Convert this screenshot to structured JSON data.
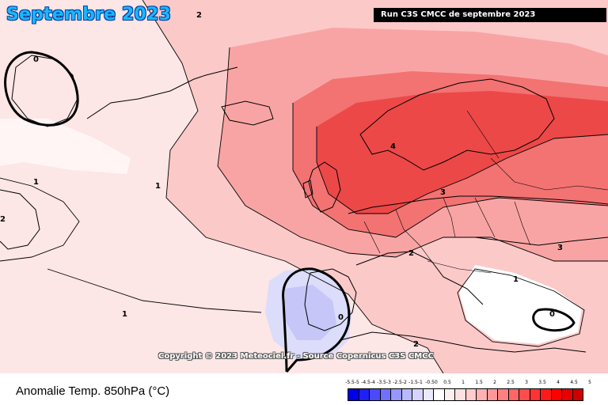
{
  "header": {
    "title": "Septembre 2023",
    "run_label": "Run C3S CMCC de septembre 2023"
  },
  "map": {
    "copyright": "Copyright © 2023 Meteociel.fr - Source Copernicus C3S CMCC",
    "contour_labels": [
      "2",
      "0",
      "1",
      "1",
      "2",
      "4",
      "3",
      "2",
      "3",
      "1",
      "1",
      "0",
      "0",
      "2"
    ]
  },
  "footer": {
    "variable_label": "Anomalie Temp. 850hPa (°C)"
  },
  "legend": {
    "ticks": [
      "-5.5-5",
      "-4.5-4",
      "-3.5-3",
      "-2.5-2",
      "-1.5-1",
      "-0.50",
      "0.5",
      "1",
      "1.5",
      "2",
      "2.5",
      "3",
      "3.5",
      "4",
      "4.5",
      "5"
    ],
    "colors": [
      "#0000e6",
      "#2020f5",
      "#4a4af8",
      "#7070fa",
      "#9696fb",
      "#b8b8fc",
      "#d4d4fd",
      "#eaeafe",
      "#ffffff",
      "#fff0f0",
      "#ffe0e0",
      "#ffcccc",
      "#ffb0b0",
      "#ff9999",
      "#ff8080",
      "#ff6666",
      "#ff4d4d",
      "#ff3333",
      "#ff1a1a",
      "#ff0000",
      "#e60000",
      "#cc0000"
    ]
  }
}
